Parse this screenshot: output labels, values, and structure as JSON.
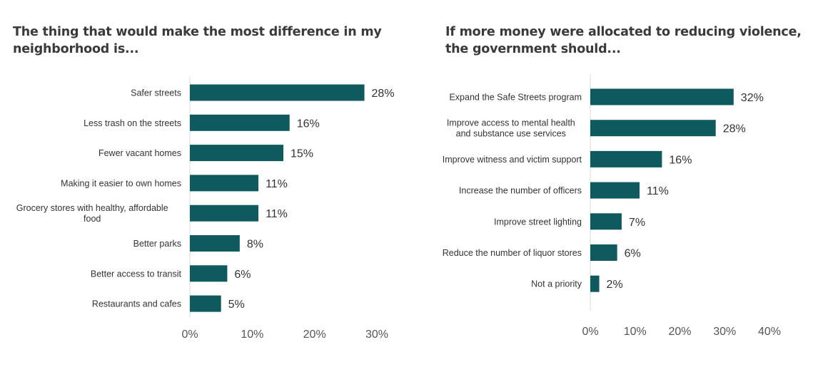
{
  "chart_data": [
    {
      "type": "bar",
      "orientation": "horizontal",
      "title": "The thing that would make the most difference in my neighborhood is...",
      "categories": [
        "Safer streets",
        "Less trash on the streets",
        "Fewer vacant homes",
        "Making it easier to own homes",
        "Grocery stores with healthy, affordable food",
        "Better parks",
        "Better access to transit",
        "Restaurants and cafes"
      ],
      "values": [
        28,
        16,
        15,
        11,
        11,
        8,
        6,
        5
      ],
      "value_labels": [
        "28%",
        "16%",
        "15%",
        "11%",
        "11%",
        "8%",
        "6%",
        "5%"
      ],
      "xlim": [
        0,
        30
      ],
      "xticks": [
        0,
        10,
        20,
        30
      ],
      "xtick_labels": [
        "0%",
        "10%",
        "20%",
        "30%"
      ],
      "xlabel": "",
      "ylabel": "",
      "grid": false,
      "bar_color": "#0f5a5e"
    },
    {
      "type": "bar",
      "orientation": "horizontal",
      "title": "If more money were allocated to reducing violence, the government should...",
      "categories": [
        "Expand the Safe Streets program",
        "Improve access to mental health and substance use services",
        "Improve witness and victim support",
        "Increase the number of officers",
        "Improve street lighting",
        "Reduce the number of liquor stores",
        "Not a priority"
      ],
      "values": [
        32,
        28,
        16,
        11,
        7,
        6,
        2
      ],
      "value_labels": [
        "32%",
        "28%",
        "16%",
        "11%",
        "7%",
        "6%",
        "2%"
      ],
      "xlim": [
        0,
        40
      ],
      "xticks": [
        0,
        10,
        20,
        30,
        40
      ],
      "xtick_labels": [
        "0%",
        "10%",
        "20%",
        "30%",
        "40%"
      ],
      "xlabel": "",
      "ylabel": "",
      "grid": false,
      "bar_color": "#0f5a5e"
    }
  ]
}
